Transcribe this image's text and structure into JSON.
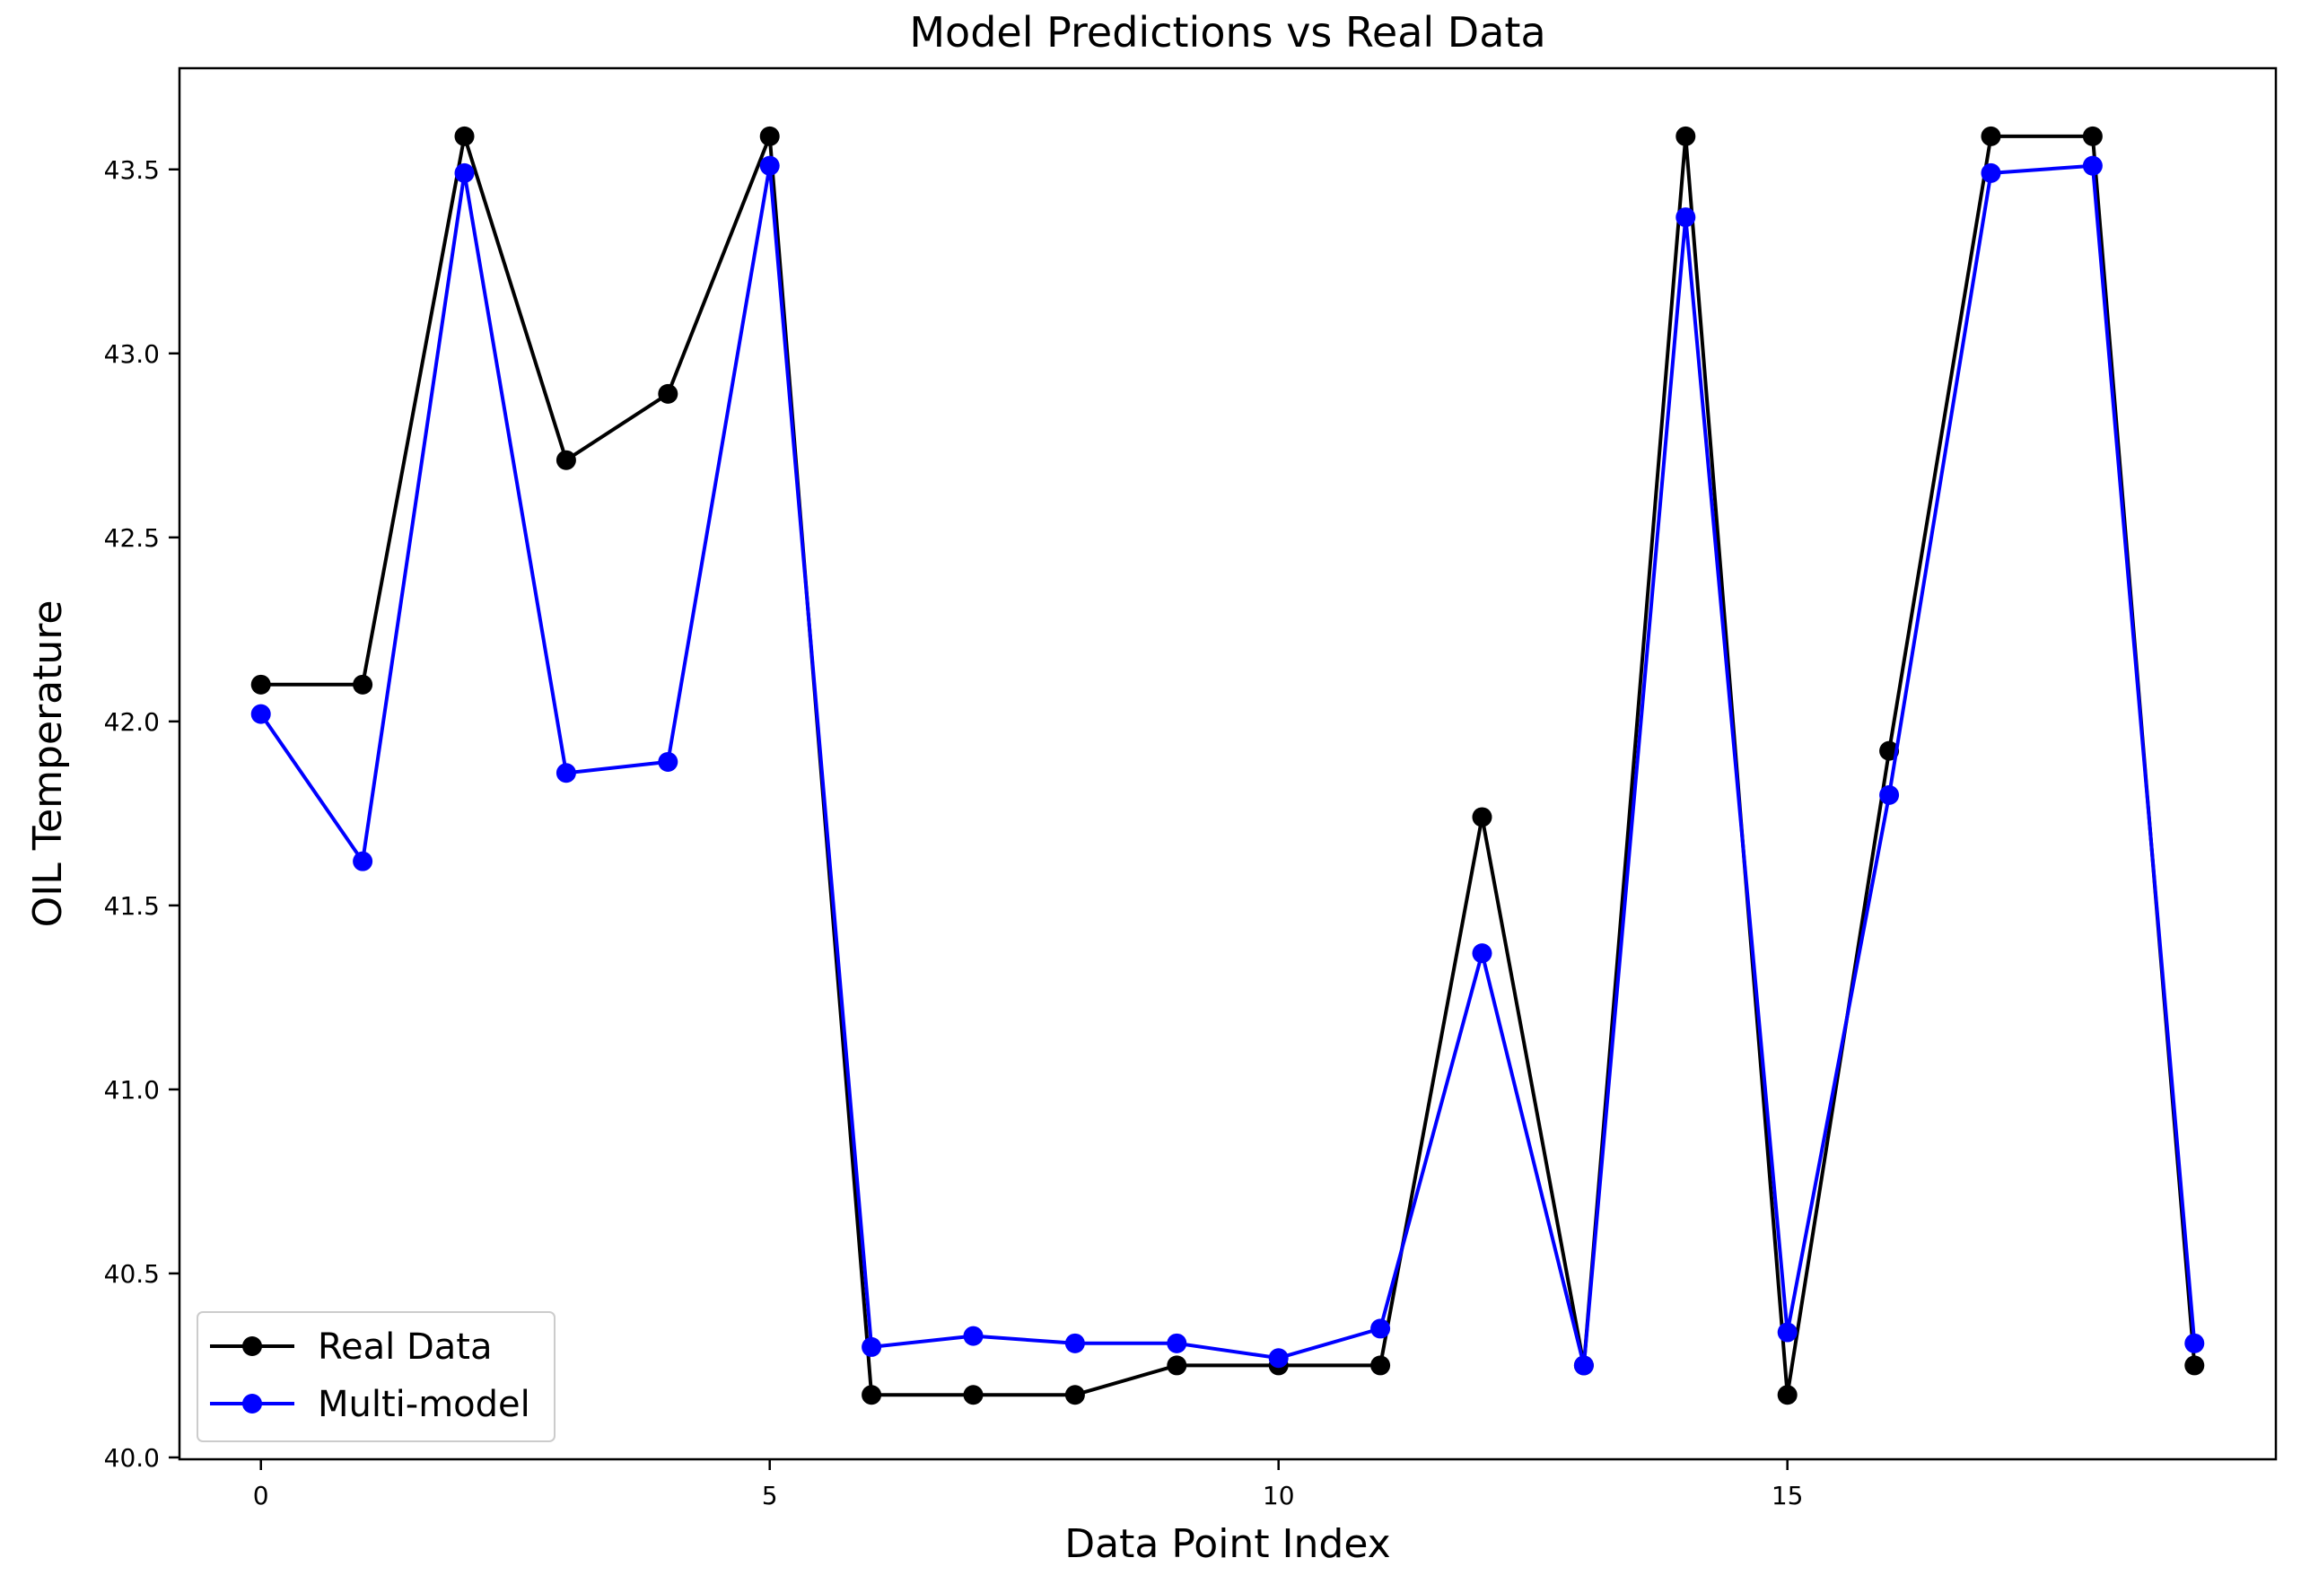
{
  "chart_data": {
    "type": "line",
    "title": "Model Predictions vs Real Data",
    "xlabel": "Data Point Index",
    "ylabel": "OIL Temperature",
    "xlim": [
      -0.8,
      19.8
    ],
    "ylim": [
      39.995,
      43.775
    ],
    "xticks": [
      0,
      5,
      10,
      15
    ],
    "yticks": [
      40.0,
      40.5,
      41.0,
      41.5,
      42.0,
      42.5,
      43.0,
      43.5
    ],
    "xtick_labels": [
      "0",
      "5",
      "10",
      "15"
    ],
    "ytick_labels": [
      "40.0",
      "40.5",
      "41.0",
      "41.5",
      "42.0",
      "42.5",
      "43.0",
      "43.5"
    ],
    "x": [
      0,
      1,
      2,
      3,
      4,
      5,
      6,
      7,
      8,
      9,
      10,
      11,
      12,
      13,
      14,
      15,
      16,
      17,
      18,
      19
    ],
    "grid": false,
    "legend_position": "lower-left",
    "series": [
      {
        "name": "Real Data",
        "color": "#000000",
        "values": [
          42.1,
          42.1,
          43.59,
          42.71,
          42.89,
          43.59,
          40.17,
          40.17,
          40.17,
          40.25,
          40.25,
          40.25,
          41.74,
          40.25,
          43.59,
          40.17,
          41.92,
          43.59,
          43.59,
          40.25
        ]
      },
      {
        "name": "Multi-model",
        "color": "#0000ff",
        "values": [
          42.02,
          41.62,
          43.49,
          41.86,
          41.89,
          43.51,
          40.3,
          40.33,
          40.31,
          40.31,
          40.27,
          40.35,
          41.37,
          40.25,
          43.37,
          40.34,
          41.8,
          43.49,
          43.51,
          40.31
        ]
      }
    ]
  }
}
